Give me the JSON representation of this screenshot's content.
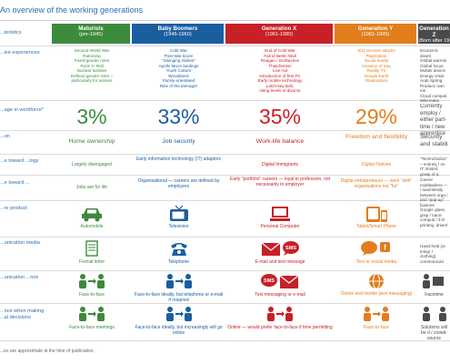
{
  "title": "An overview of the working generations",
  "colors": {
    "maturists": "#3c8a3c",
    "baby_boomers": "#1a5ea0",
    "generation_x": "#c72027",
    "generation_y": "#e27d1d",
    "generation_z": "#4a4a4a"
  },
  "generations": [
    {
      "name": "Maturists",
      "years": "(pre-1945)"
    },
    {
      "name": "Baby Boomers",
      "years": "(1945-1960)"
    },
    {
      "name": "Generation X",
      "years": "(1961-1980)"
    },
    {
      "name": "Generation Y",
      "years": "(1981-1995)"
    },
    {
      "name": "Generation Z",
      "years": "(Born after 19"
    }
  ],
  "rows": [
    {
      "label": "...teristics",
      "label_lines": [
        "eteristics"
      ]
    },
    {
      "label": "...ive experiences",
      "values": [
        [
          "Second World War",
          "Rationing",
          "Fixed-gender roles",
          "Rock 'n' Roll",
          "Nuclear families",
          "Defined gender roles –",
          "particularly for women"
        ],
        [
          "Cold War",
          "Post-War boom",
          "\"Swinging Sixties\"",
          "Apollo Moon landings",
          "Youth Culture",
          "Woodstock",
          "Family-orientated",
          "Rise of the teenager"
        ],
        [
          "End of Cold War",
          "Fall of Berlin Wall",
          "Reagan / Gorbachev",
          "Thatcherism",
          "Live Aid",
          "Introduction of first PC",
          "Early mobile technology",
          "Latch-key kids;",
          "rising levels of divorce"
        ],
        [
          "9/11 terrorist attacks",
          "PlayStation",
          "Social media",
          "Invasion of Iraq",
          "Reality TV",
          "Google Earth",
          "Glastonbury"
        ],
        [
          "Economic downt",
          "Global warmin",
          "Global focus",
          "Mobile device",
          "Energy crisis",
          "Arab Spring",
          "Produce own me",
          "Cloud computi",
          "Wiki-leaks"
        ]
      ]
    },
    {
      "label": "...age in workforce*",
      "values": [
        "3%",
        "33%",
        "35%",
        "29%",
        "Currently employ / either part-time / new apprentice"
      ]
    },
    {
      "label": "...on",
      "values": [
        "Home ownership",
        "Job security",
        "Work-life balance",
        "Freedom and flexibility",
        "Security and stabili"
      ]
    },
    {
      "label": "...e toward ...logy",
      "values": [
        "Largely disengaged",
        "Early information technology (IT) adaptors",
        "Digital Immigrants",
        "Digital Natives",
        "\"Technoholics\" – entirely / on IT; limited grasp of a"
      ]
    },
    {
      "label": "...e toward ...",
      "values": [
        "Jobs are for life",
        "Organisational — careers are defined by employers",
        "Early \"portfolio\" careers — loyal to profession, not necessarily to employer",
        "Digital entrepreneurs — work \"with\" organisations not \"for\"",
        "Career multitaskers — / seamlessly between orga / and \"pop-up\" busines"
      ]
    },
    {
      "label": "...re product",
      "values": [
        "Automobile",
        "Television",
        "Personal Computer",
        "Tablet/Smart Phone",
        "Google glass, grap / nano-computi / 3-D printing, driverl"
      ]
    },
    {
      "label": "...unication media",
      "values": [
        "Formal letter",
        "Telephone",
        "E-mail and text message",
        "Text or social media",
        "Hand-held (or integr / clothing) communicati"
      ]
    },
    {
      "label": "...unication ...nce",
      "values": [
        "Face-to-face",
        "Face-to-face ideally, but telephone or e-mail if required",
        "Text messaging or e-mail",
        "Online and mobile (text messaging)",
        "Facetime"
      ]
    },
    {
      "label": "...nce when making ...al decisions",
      "values": [
        "Face-to-face meetings",
        "Face-to-face ideally, but increasingly will go online",
        "Online — would prefer face-to-face if time permitting",
        "Face-to-face",
        "Solutions will be d / crowd-source"
      ]
    }
  ],
  "icons": {
    "product": [
      "car-icon",
      "television-icon",
      "personal-computer-icon",
      "tablet-phone-icon",
      ""
    ],
    "media": [
      "letter-icon",
      "telephone-icon",
      "email-sms-icon",
      "chat-bubble-icon",
      "handheld-icon"
    ],
    "preference": [
      "people-face-to-face-icon",
      "people-face-to-face-icon",
      "sms-email-icon",
      "online-mobile-icon",
      "facetime-icon"
    ],
    "financial": [
      "people-face-to-face-icon",
      "people-face-to-face-icon",
      "people-face-to-face-icon",
      "people-face-to-face-icon",
      "people-face-to-face-icon"
    ]
  },
  "footnote": "...es are approximate at the time of publication."
}
